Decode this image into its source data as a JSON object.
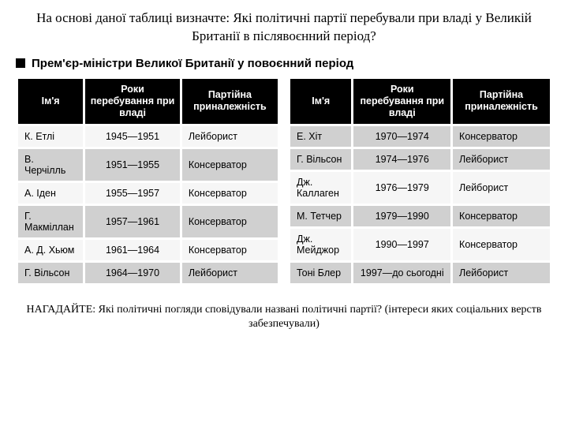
{
  "question": "На основі даної таблиці визначте:\nЯкі політичні партії перебували при владі у Великій Британії в післявоєнний період?",
  "section_title": "Прем'єр-міністри Великої Британії у повоєнний період",
  "columns": {
    "name": "Ім'я",
    "years": "Роки перебування при владі",
    "party": "Партійна приналежність"
  },
  "left_rows": [
    {
      "name": "К. Етлі",
      "years": "1945—1951",
      "party": "Лейборист",
      "shade": "light"
    },
    {
      "name": "В. Черчілль",
      "years": "1951—1955",
      "party": "Консерватор",
      "shade": "dark"
    },
    {
      "name": "А. Іден",
      "years": "1955—1957",
      "party": "Консерватор",
      "shade": "light"
    },
    {
      "name": "Г. Макміллан",
      "years": "1957—1961",
      "party": "Консерватор",
      "shade": "dark"
    },
    {
      "name": "А. Д. Хьюм",
      "years": "1961—1964",
      "party": "Консерватор",
      "shade": "light"
    },
    {
      "name": "Г. Вільсон",
      "years": "1964—1970",
      "party": "Лейборист",
      "shade": "dark"
    }
  ],
  "right_rows": [
    {
      "name": "Е. Хіт",
      "years": "1970—1974",
      "party": "Консерватор",
      "shade": "dark"
    },
    {
      "name": "Г. Вільсон",
      "years": "1974—1976",
      "party": "Лейборист",
      "shade": "dark"
    },
    {
      "name": "Дж. Каллаген",
      "years": "1976—1979",
      "party": "Лейборист",
      "shade": "light"
    },
    {
      "name": "М. Тетчер",
      "years": "1979—1990",
      "party": "Консерватор",
      "shade": "dark"
    },
    {
      "name": "Дж. Мейджор",
      "years": "1990—1997",
      "party": "Консерватор",
      "shade": "light"
    },
    {
      "name": "Тоні Блер",
      "years": "1997—до сьогодні",
      "party": "Лейборист",
      "shade": "dark"
    }
  ],
  "footer": "НАГАДАЙТЕ: Які політичні погляди сповідували названі політичні партії? (інтереси яких соціальних верств забезпечували)"
}
